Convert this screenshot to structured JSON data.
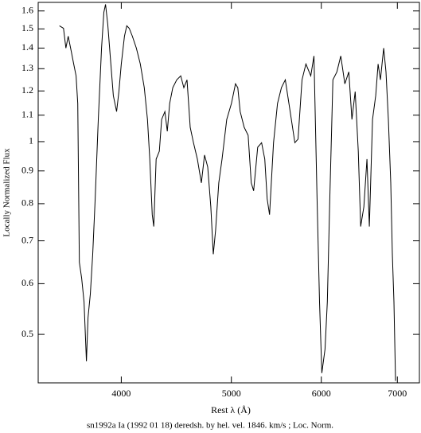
{
  "chart_data": {
    "type": "line",
    "xlabel": "Rest λ (Å)",
    "ylabel": "Locally Normalized Flux",
    "caption": "sn1992a Ia (1992 01 18) deredsh. by hel. vel.  1846. km/s ;  Loc. Norm.",
    "xscale": "log",
    "yscale": "log",
    "xlim": [
      3380,
      7320
    ],
    "ylim": [
      0.42,
      1.65
    ],
    "xticks": [
      4000,
      5000,
      6000,
      7000
    ],
    "yticks": [
      0.5,
      0.6,
      0.7,
      0.8,
      0.9,
      1,
      1.1,
      1.2,
      1.3,
      1.4,
      1.5,
      1.6
    ],
    "series": [
      {
        "color": "#000000",
        "x": [
          3529,
          3558,
          3575,
          3592,
          3615,
          3632,
          3650,
          3662,
          3674,
          3691,
          3709,
          3727,
          3739,
          3757,
          3775,
          3794,
          3818,
          3843,
          3861,
          3874,
          3892,
          3911,
          3936,
          3962,
          3981,
          4000,
          4026,
          4045,
          4065,
          4091,
          4124,
          4157,
          4191,
          4218,
          4238,
          4259,
          4272,
          4293,
          4321,
          4341,
          4370,
          4391,
          4412,
          4440,
          4476,
          4512,
          4541,
          4570,
          4600,
          4630,
          4667,
          4705,
          4735,
          4766,
          4796,
          4820,
          4843,
          4874,
          4906,
          4953,
          5001,
          5042,
          5066,
          5090,
          5131,
          5173,
          5206,
          5231,
          5274,
          5316,
          5350,
          5376,
          5402,
          5446,
          5490,
          5534,
          5578,
          5633,
          5687,
          5724,
          5770,
          5816,
          5873,
          5911,
          5949,
          5978,
          6006,
          6045,
          6074,
          6104,
          6143,
          6192,
          6242,
          6293,
          6344,
          6384,
          6426,
          6467,
          6498,
          6540,
          6582,
          6614,
          6657,
          6700,
          6732,
          6764,
          6808,
          6841,
          6874,
          6907,
          6929,
          6952,
          6974
        ],
        "values": [
          1.517,
          1.503,
          1.4,
          1.461,
          1.38,
          1.322,
          1.267,
          1.147,
          0.648,
          0.612,
          0.562,
          0.454,
          0.531,
          0.578,
          0.667,
          0.814,
          1.083,
          1.4,
          1.592,
          1.638,
          1.525,
          1.361,
          1.18,
          1.114,
          1.197,
          1.322,
          1.461,
          1.517,
          1.503,
          1.461,
          1.4,
          1.322,
          1.214,
          1.083,
          0.939,
          0.769,
          0.737,
          0.939,
          0.966,
          1.083,
          1.114,
          1.038,
          1.147,
          1.214,
          1.249,
          1.267,
          1.214,
          1.249,
          1.053,
          0.996,
          0.939,
          0.862,
          0.953,
          0.913,
          0.791,
          0.667,
          0.727,
          0.862,
          0.939,
          1.083,
          1.147,
          1.231,
          1.214,
          1.114,
          1.053,
          1.023,
          0.862,
          0.838,
          0.98,
          0.996,
          0.939,
          0.814,
          0.769,
          0.996,
          1.147,
          1.214,
          1.249,
          1.114,
          0.996,
          1.009,
          1.249,
          1.322,
          1.267,
          1.361,
          0.814,
          0.562,
          0.435,
          0.474,
          0.562,
          0.814,
          1.249,
          1.285,
          1.361,
          1.231,
          1.285,
          1.083,
          1.197,
          0.966,
          0.737,
          0.791,
          0.939,
          0.737,
          1.083,
          1.18,
          1.322,
          1.249,
          1.4,
          1.285,
          1.083,
          0.862,
          0.667,
          0.562,
          0.423
        ]
      }
    ]
  }
}
